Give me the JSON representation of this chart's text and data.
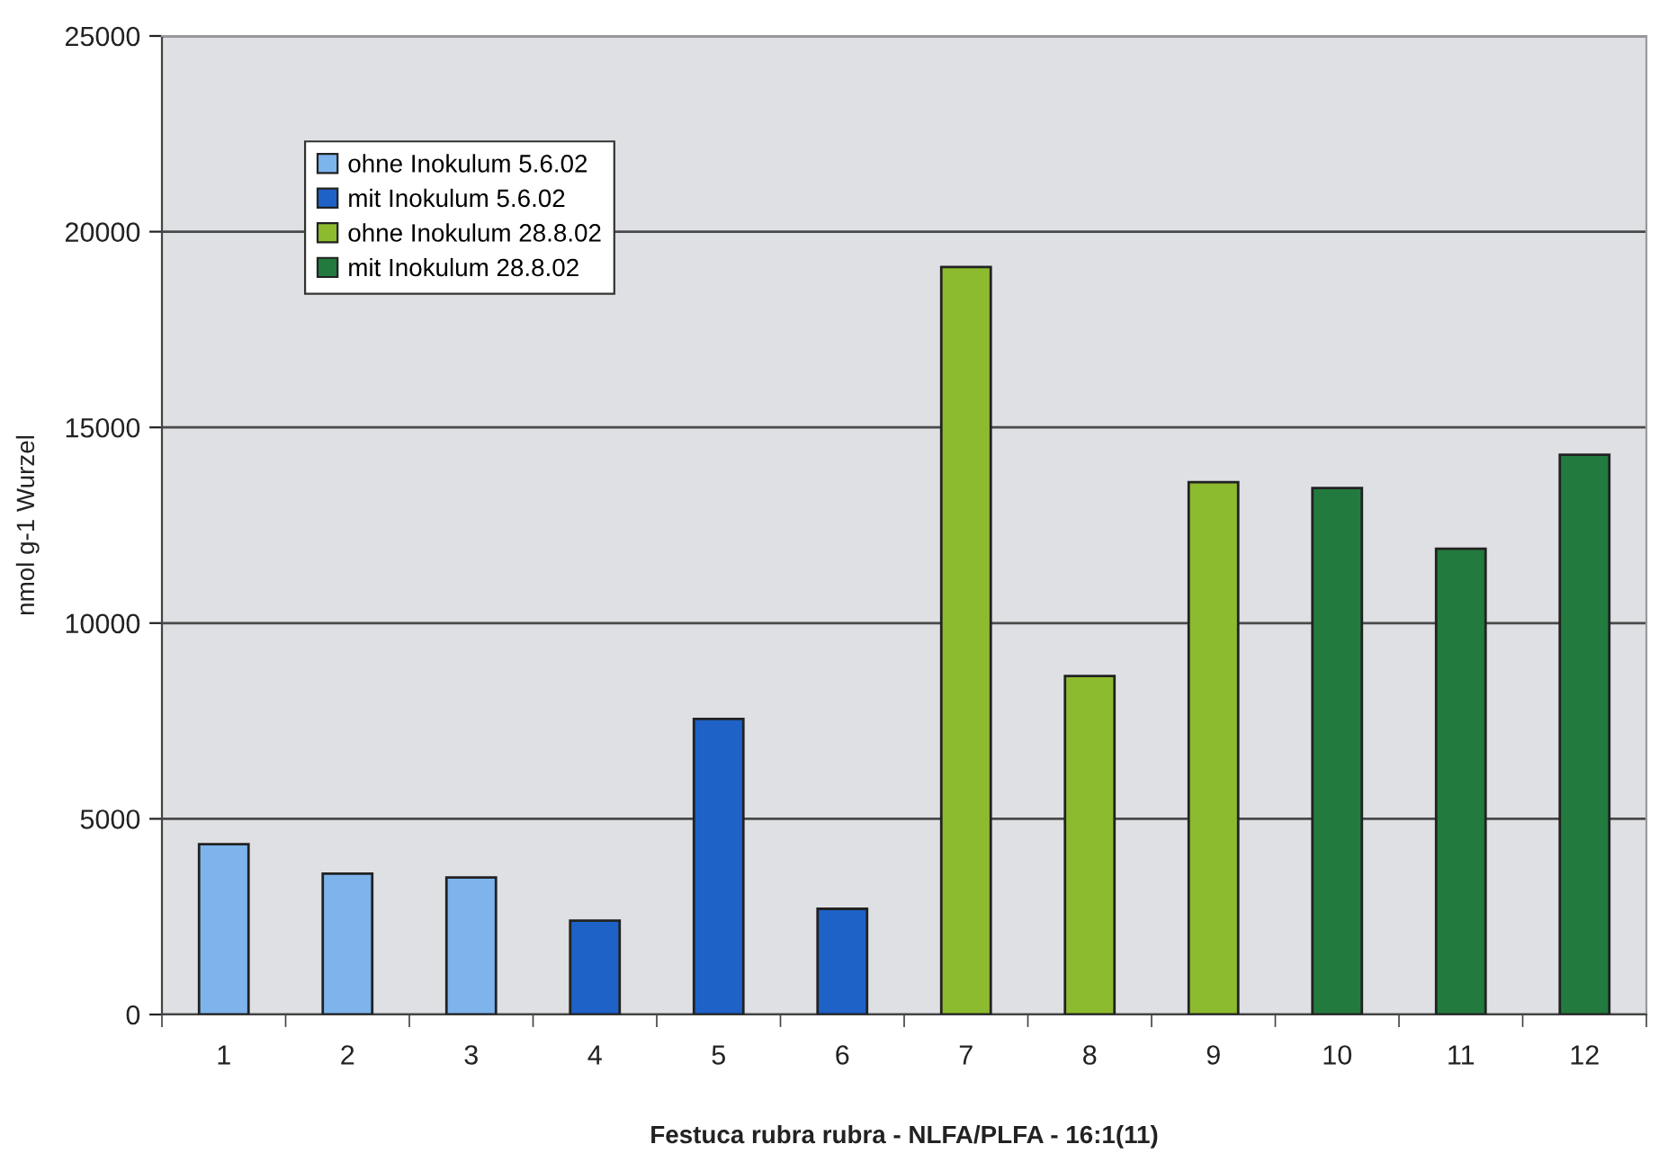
{
  "chart_data": {
    "type": "bar",
    "xlabel": "Festuca rubra rubra - NLFA/PLFA - 16:1(11)",
    "ylabel": "nmol g-1 Wurzel",
    "categories": [
      "1",
      "2",
      "3",
      "4",
      "5",
      "6",
      "7",
      "8",
      "9",
      "10",
      "11",
      "12"
    ],
    "series": [
      {
        "name": "ohne Inokulum 5.6.02",
        "color": "#7db4ec",
        "values": [
          4350,
          3600,
          3500,
          null,
          null,
          null,
          null,
          null,
          null,
          null,
          null,
          null
        ]
      },
      {
        "name": "mit Inokulum 5.6.02",
        "color": "#1e62c8",
        "values": [
          null,
          null,
          null,
          2400,
          7550,
          2700,
          null,
          null,
          null,
          null,
          null,
          null
        ]
      },
      {
        "name": "ohne Inokulum 28.8.02",
        "color": "#8dbb2f",
        "values": [
          null,
          null,
          null,
          null,
          null,
          null,
          19100,
          8650,
          13600,
          null,
          null,
          null
        ]
      },
      {
        "name": "mit Inokulum 28.8.02",
        "color": "#237a3e",
        "values": [
          null,
          null,
          null,
          null,
          null,
          null,
          null,
          null,
          null,
          13450,
          11900,
          14300
        ]
      }
    ],
    "ylim": [
      0,
      25000
    ],
    "yticks": [
      0,
      5000,
      10000,
      15000,
      20000,
      25000
    ],
    "grid": "y",
    "legend": "top left"
  }
}
